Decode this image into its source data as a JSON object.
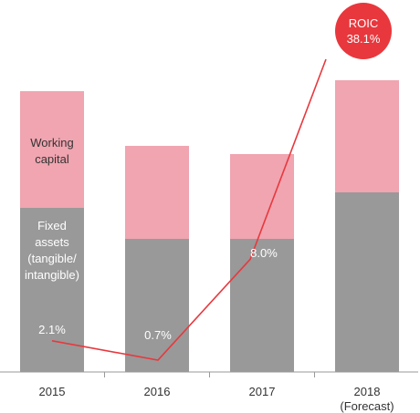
{
  "chart_data": {
    "type": "bar",
    "stacked": true,
    "categories": [
      "2015",
      "2016",
      "2017",
      "2018"
    ],
    "category_sublabels": [
      "",
      "",
      "",
      "(Forecast)"
    ],
    "series": [
      {
        "name": "Fixed assets (tangible/ intangible)",
        "label_lines": [
          "Fixed",
          "assets",
          "(tangible/",
          "intangible)"
        ],
        "values": [
          180,
          146,
          146,
          197
        ],
        "color": "#999999"
      },
      {
        "name": "Working capital",
        "label_lines": [
          "Working",
          "capital"
        ],
        "values": [
          128,
          102,
          93,
          123
        ],
        "color": "#f0a5b1"
      }
    ],
    "line": {
      "name": "ROIC",
      "values": [
        2.1,
        0.7,
        8.0,
        38.1
      ],
      "labels": [
        "2.1%",
        "0.7%",
        "8.0%",
        "38.1%"
      ],
      "color": "#e8383d"
    },
    "badge": {
      "title": "ROIC",
      "value": "38.1%",
      "color": "#e8383d"
    },
    "axis_color": "#999999",
    "grid": false,
    "legend": "inline"
  }
}
